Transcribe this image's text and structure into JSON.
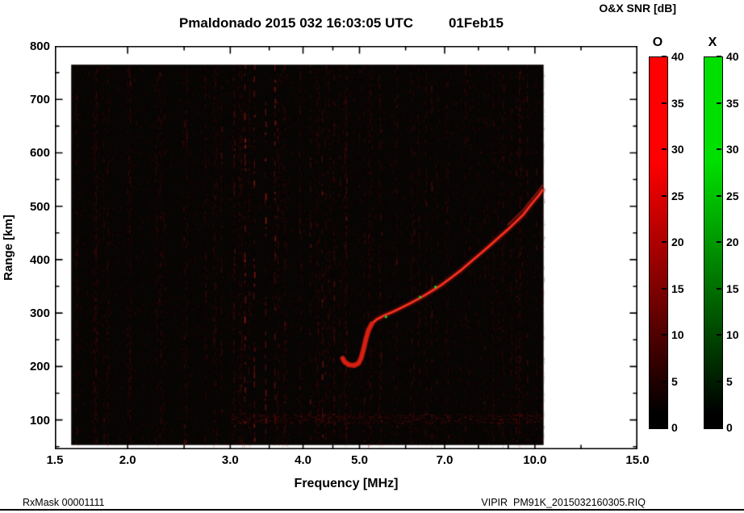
{
  "footer": {
    "left": "RxMask 00001111",
    "right": "VIPIR  PM91K_2015032160305.RIQ"
  },
  "chart_data": {
    "type": "heatmap",
    "subtype": "ionogram",
    "title": "Pmaldonado 2015 032 16:03:05 UTC",
    "date_label": "01Feb15",
    "xlabel": "Frequency [MHz]",
    "ylabel": "Range [km]",
    "xscale": "log",
    "xlim": [
      1.5,
      15.0
    ],
    "ylim": [
      45,
      800
    ],
    "xticks": [
      1.5,
      2.0,
      3.0,
      4.0,
      5.0,
      7.0,
      10.0,
      15.0
    ],
    "xticks_minor": [
      2.5,
      3.5,
      4.5,
      6.0,
      8.0,
      9.0,
      12.0
    ],
    "yticks": [
      100,
      200,
      300,
      400,
      500,
      600,
      700,
      800
    ],
    "ytick_minor_step": 50,
    "grid": false,
    "background_color": "#070404",
    "data_extent": {
      "freq_mhz": [
        1.6,
        10.35
      ],
      "range_km": [
        53,
        765
      ]
    },
    "noise": {
      "color": "#8c1a10",
      "speckles": 15000,
      "streak_columns": 60
    },
    "rfi_color": "#d2261a",
    "rfi_lines": [
      [
        1.82,
        0.2
      ],
      [
        2.02,
        0.25
      ],
      [
        2.28,
        0.18
      ],
      [
        2.5,
        0.22
      ],
      [
        2.72,
        0.2
      ],
      [
        2.9,
        0.25
      ],
      [
        3.05,
        0.35
      ],
      [
        3.18,
        0.6
      ],
      [
        3.3,
        0.5
      ],
      [
        3.45,
        0.65
      ],
      [
        3.58,
        0.55
      ],
      [
        3.72,
        0.3
      ],
      [
        3.95,
        0.2
      ],
      [
        4.12,
        0.35
      ],
      [
        4.32,
        0.4
      ],
      [
        4.52,
        0.3
      ],
      [
        4.75,
        0.25
      ],
      [
        5.1,
        0.2
      ],
      [
        5.45,
        0.25
      ],
      [
        5.8,
        0.3
      ],
      [
        6.2,
        0.2
      ],
      [
        6.65,
        0.25
      ],
      [
        7.1,
        0.18
      ],
      [
        7.6,
        0.15
      ],
      [
        8.2,
        0.18
      ],
      [
        8.8,
        0.2
      ],
      [
        9.3,
        0.25
      ],
      [
        9.7,
        0.2
      ],
      [
        10.05,
        0.2
      ]
    ],
    "eregion_band": {
      "freq_mhz": [
        3.0,
        10.3
      ],
      "range_km": [
        93,
        112
      ],
      "color": "#be2014"
    },
    "echo_trace": {
      "mode": "O",
      "glow_color": "#8c120a",
      "core_color": "#d71e12",
      "hot_color": "#ff3c28",
      "points_mhz_km": [
        [
          4.68,
          215
        ],
        [
          4.72,
          208
        ],
        [
          4.8,
          203
        ],
        [
          4.9,
          202
        ],
        [
          4.98,
          206
        ],
        [
          5.03,
          215
        ],
        [
          5.08,
          232
        ],
        [
          5.13,
          252
        ],
        [
          5.18,
          268
        ],
        [
          5.25,
          280
        ],
        [
          5.35,
          288
        ],
        [
          5.5,
          295
        ],
        [
          5.7,
          302
        ],
        [
          5.9,
          310
        ],
        [
          6.1,
          318
        ],
        [
          6.35,
          328
        ],
        [
          6.6,
          339
        ],
        [
          6.9,
          352
        ],
        [
          7.2,
          367
        ],
        [
          7.5,
          382
        ],
        [
          7.8,
          398
        ],
        [
          8.1,
          413
        ],
        [
          8.4,
          428
        ],
        [
          8.7,
          443
        ],
        [
          9.0,
          457
        ],
        [
          9.3,
          472
        ],
        [
          9.55,
          484
        ],
        [
          9.75,
          497
        ],
        [
          9.95,
          509
        ],
        [
          10.15,
          520
        ],
        [
          10.3,
          530
        ]
      ]
    },
    "green_specks": {
      "color": "#00a818",
      "points_mhz_km": [
        [
          5.55,
          293
        ],
        [
          6.35,
          330
        ],
        [
          6.75,
          349
        ]
      ]
    },
    "colorbar": {
      "title": "O&X SNR [dB]",
      "min": 0,
      "max": 40,
      "ticks": [
        40,
        35,
        30,
        25,
        20,
        15,
        10,
        5,
        0
      ],
      "bars": [
        {
          "label": "O",
          "color": "#ff0000"
        },
        {
          "label": "X",
          "color": "#00e000"
        }
      ]
    }
  }
}
